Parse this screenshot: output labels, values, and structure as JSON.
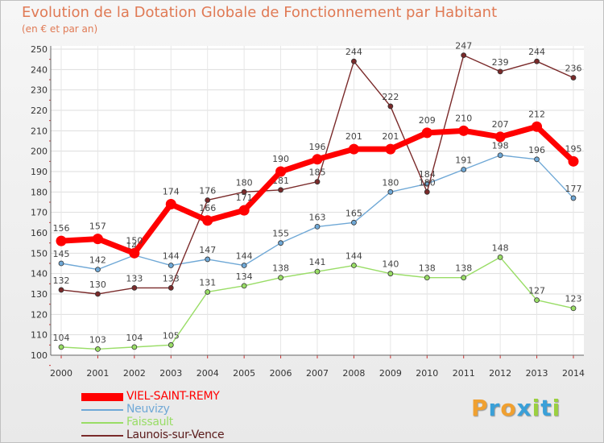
{
  "header": {
    "title": "Evolution de la Dotation Globale de Fonctionnement par Habitant",
    "subtitle": "(en € et par an)"
  },
  "logo": {
    "letters": [
      "P",
      "r",
      "o",
      "x",
      "i",
      "t",
      "i"
    ],
    "colors": [
      "#f0a030",
      "#3aa0d8",
      "#f0a030",
      "#3aa0d8",
      "#9bd040",
      "#3aa0d8",
      "#9bd040"
    ]
  },
  "chart_data": {
    "type": "line",
    "title": "Evolution de la Dotation Globale de Fonctionnement par Habitant",
    "subtitle": "(en € et par an)",
    "xlabel": "",
    "ylabel": "",
    "x": [
      "2000",
      "2001",
      "2002",
      "2003",
      "2004",
      "2005",
      "2006",
      "2007",
      "2008",
      "2009",
      "2010",
      "2011",
      "2012",
      "2013",
      "2014"
    ],
    "ylim": [
      100,
      250
    ],
    "yticks": [
      100,
      110,
      120,
      130,
      140,
      150,
      160,
      170,
      180,
      190,
      200,
      210,
      220,
      230,
      240,
      250
    ],
    "grid": true,
    "legend_position": "bottom-left",
    "series": [
      {
        "name": "VIEL-SAINT-REMY",
        "color": "#ff0000",
        "highlight": true,
        "values": [
          156,
          157,
          150,
          174,
          166,
          171,
          190,
          196,
          201,
          201,
          209,
          210,
          207,
          212,
          195
        ],
        "labels": [
          "156",
          "157",
          "150",
          "174",
          "166",
          "171",
          "190",
          "196",
          "201",
          "201",
          "209",
          "210",
          "207",
          "212",
          "195"
        ]
      },
      {
        "name": "Neuvizy",
        "color": "#6fa8d6",
        "values": [
          145,
          142,
          149,
          144,
          147,
          144,
          155,
          163,
          165,
          180,
          184,
          191,
          198,
          196,
          177
        ],
        "labels": [
          "145",
          "142",
          "149",
          "144",
          "147",
          "144",
          "155",
          "163",
          "165",
          "180",
          "184",
          "191",
          "198",
          "196",
          "177"
        ]
      },
      {
        "name": "Faissault",
        "color": "#99dd66",
        "values": [
          104,
          103,
          104,
          105,
          131,
          134,
          138,
          141,
          144,
          140,
          138,
          138,
          148,
          127,
          123
        ],
        "labels": [
          "104",
          "103",
          "104",
          "105",
          "131",
          "134",
          "138",
          "141",
          "144",
          "140",
          "138",
          "138",
          "148",
          "127",
          "123"
        ]
      },
      {
        "name": "Launois-sur-Vence",
        "color": "#7a2a2a",
        "values": [
          132,
          130,
          133,
          133,
          176,
          180,
          181,
          185,
          244,
          222,
          180,
          247,
          239,
          244,
          236
        ],
        "labels": [
          "132",
          "130",
          "133",
          "133",
          "176",
          "180",
          "181",
          "185",
          "244",
          "222",
          "180",
          "247",
          "239",
          "244",
          "236"
        ]
      }
    ]
  }
}
